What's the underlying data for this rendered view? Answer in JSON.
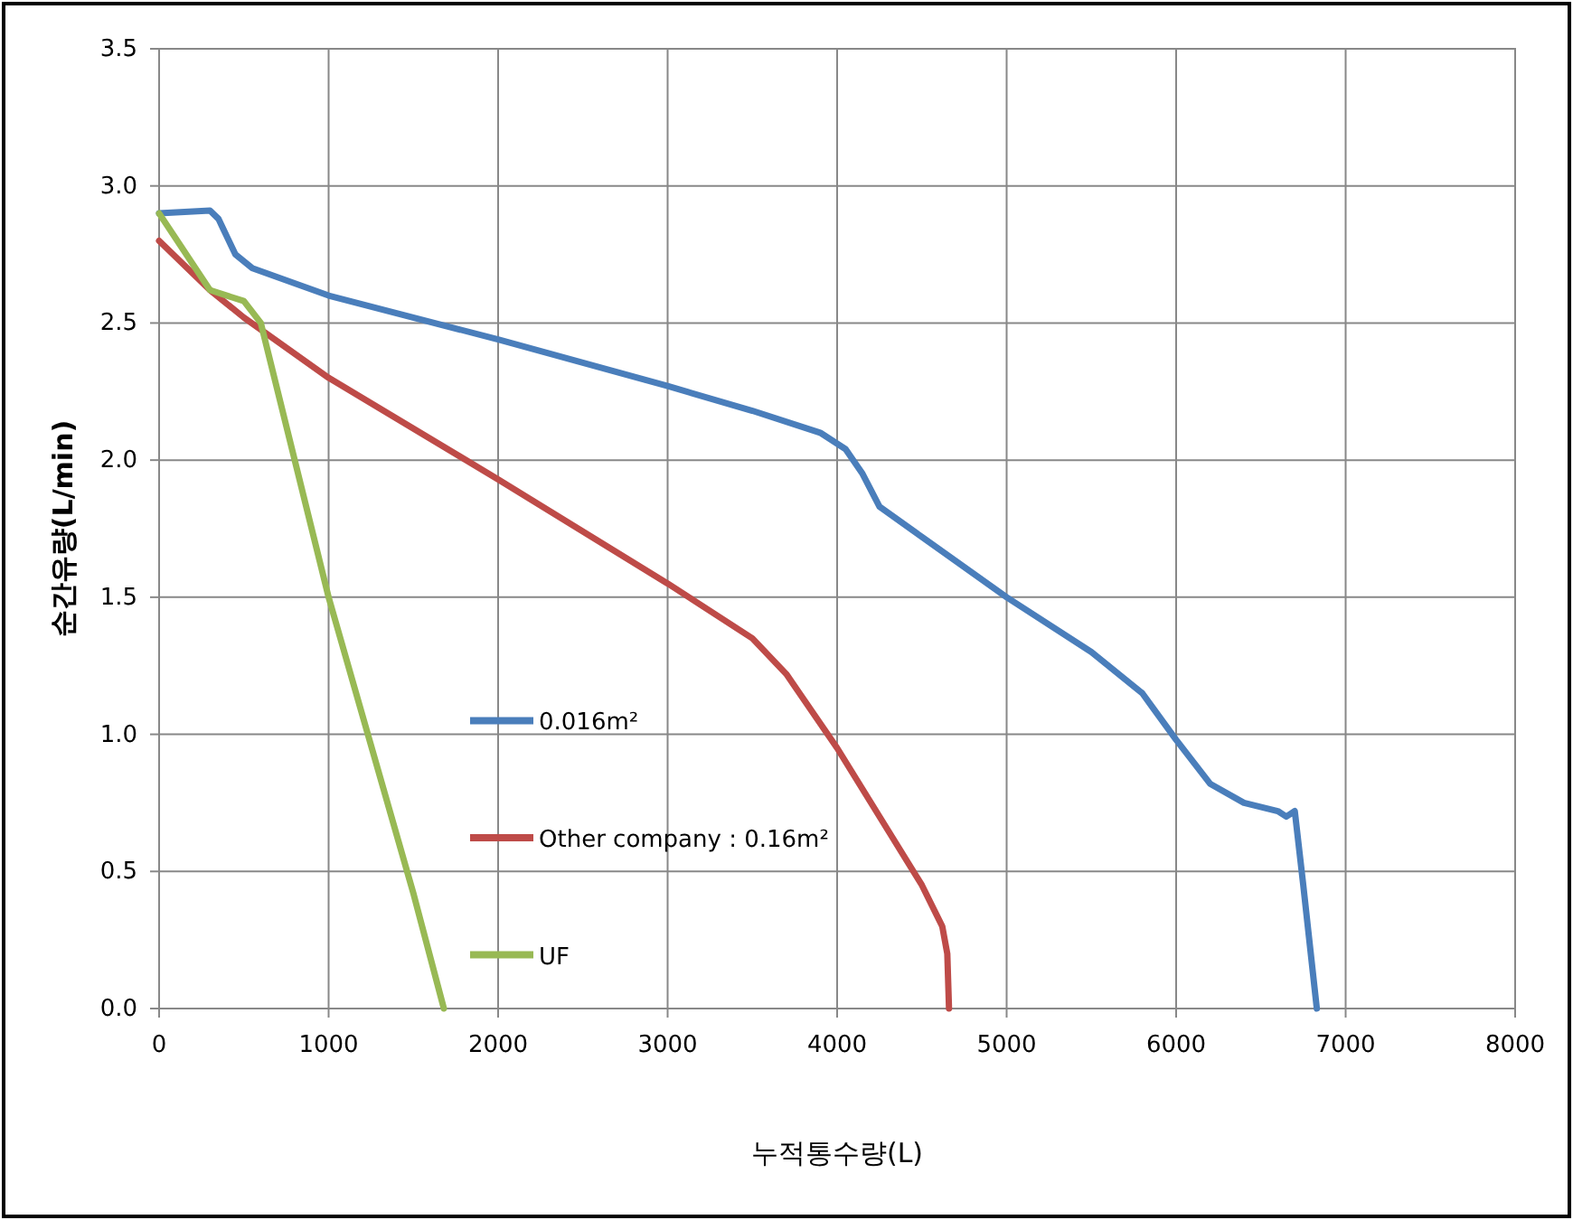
{
  "chart_data": {
    "type": "line",
    "xlabel": "누적통수량(L)",
    "ylabel": "순간유량(L/min)",
    "xlim": [
      0,
      8000
    ],
    "xticks": [
      0,
      1000,
      2000,
      3000,
      4000,
      5000,
      6000,
      7000,
      8000
    ],
    "ylim": [
      0,
      3.5
    ],
    "yticks": [
      {
        "value": 0,
        "label": "0.0"
      },
      {
        "value": 0.5,
        "label": "0.5"
      },
      {
        "value": 1,
        "label": "1.0"
      },
      {
        "value": 1.5,
        "label": "1.5"
      },
      {
        "value": 2,
        "label": "2.0"
      },
      {
        "value": 2.5,
        "label": "2.5"
      },
      {
        "value": 3,
        "label": "3.0"
      },
      {
        "value": 3.5,
        "label": "3.5"
      }
    ],
    "grid": true,
    "legend": "bottom left",
    "marker": "none",
    "line_style": "solid",
    "series": [
      {
        "name": "0.016m²",
        "color": "#4a7ebb",
        "x": [
          0,
          300,
          350,
          450,
          550,
          1000,
          2000,
          3000,
          3500,
          3900,
          4050,
          4150,
          4250,
          4500,
          5000,
          5500,
          5800,
          6000,
          6200,
          6400,
          6600,
          6650,
          6700,
          6750,
          6830
        ],
        "values": [
          2.9,
          2.91,
          2.88,
          2.75,
          2.7,
          2.6,
          2.44,
          2.27,
          2.18,
          2.1,
          2.04,
          1.95,
          1.83,
          1.72,
          1.5,
          1.3,
          1.15,
          0.98,
          0.82,
          0.75,
          0.72,
          0.7,
          0.72,
          0.45,
          0
        ]
      },
      {
        "name": "Other company : 0.16m²",
        "color": "#be4b48",
        "x": [
          0,
          300,
          500,
          1000,
          2000,
          3000,
          3500,
          3700,
          4000,
          4300,
          4500,
          4620,
          4650,
          4660
        ],
        "values": [
          2.8,
          2.62,
          2.52,
          2.3,
          1.93,
          1.55,
          1.35,
          1.22,
          0.95,
          0.65,
          0.45,
          0.3,
          0.2,
          0
        ]
      },
      {
        "name": "UF",
        "color": "#98b954",
        "x": [
          0,
          300,
          500,
          600,
          1000,
          1500,
          1680
        ],
        "values": [
          2.9,
          2.62,
          2.58,
          2.5,
          1.5,
          0.42,
          0
        ]
      }
    ]
  }
}
